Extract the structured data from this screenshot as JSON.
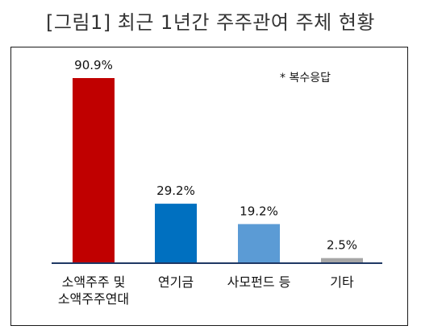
{
  "title": "[그림1] 최근 1년간 주주관여 주체 현황",
  "note": "* 복수응답",
  "chart_data": {
    "type": "bar",
    "title": "[그림1] 최근 1년간 주주관여 주체 현황",
    "categories": [
      [
        "소액주주 및",
        "소액주주연대"
      ],
      [
        "연기금"
      ],
      [
        "사모펀드 등"
      ],
      [
        "기타"
      ]
    ],
    "values": [
      90.9,
      29.2,
      19.2,
      2.5
    ],
    "value_labels": [
      "90.9%",
      "29.2%",
      "19.2%",
      "2.5%"
    ],
    "unit": "%",
    "ylim": [
      0,
      100
    ],
    "grid": false,
    "legend": "none",
    "colors": [
      "#c00000",
      "#0070c0",
      "#5b9bd5",
      "#a6a6a6"
    ]
  }
}
